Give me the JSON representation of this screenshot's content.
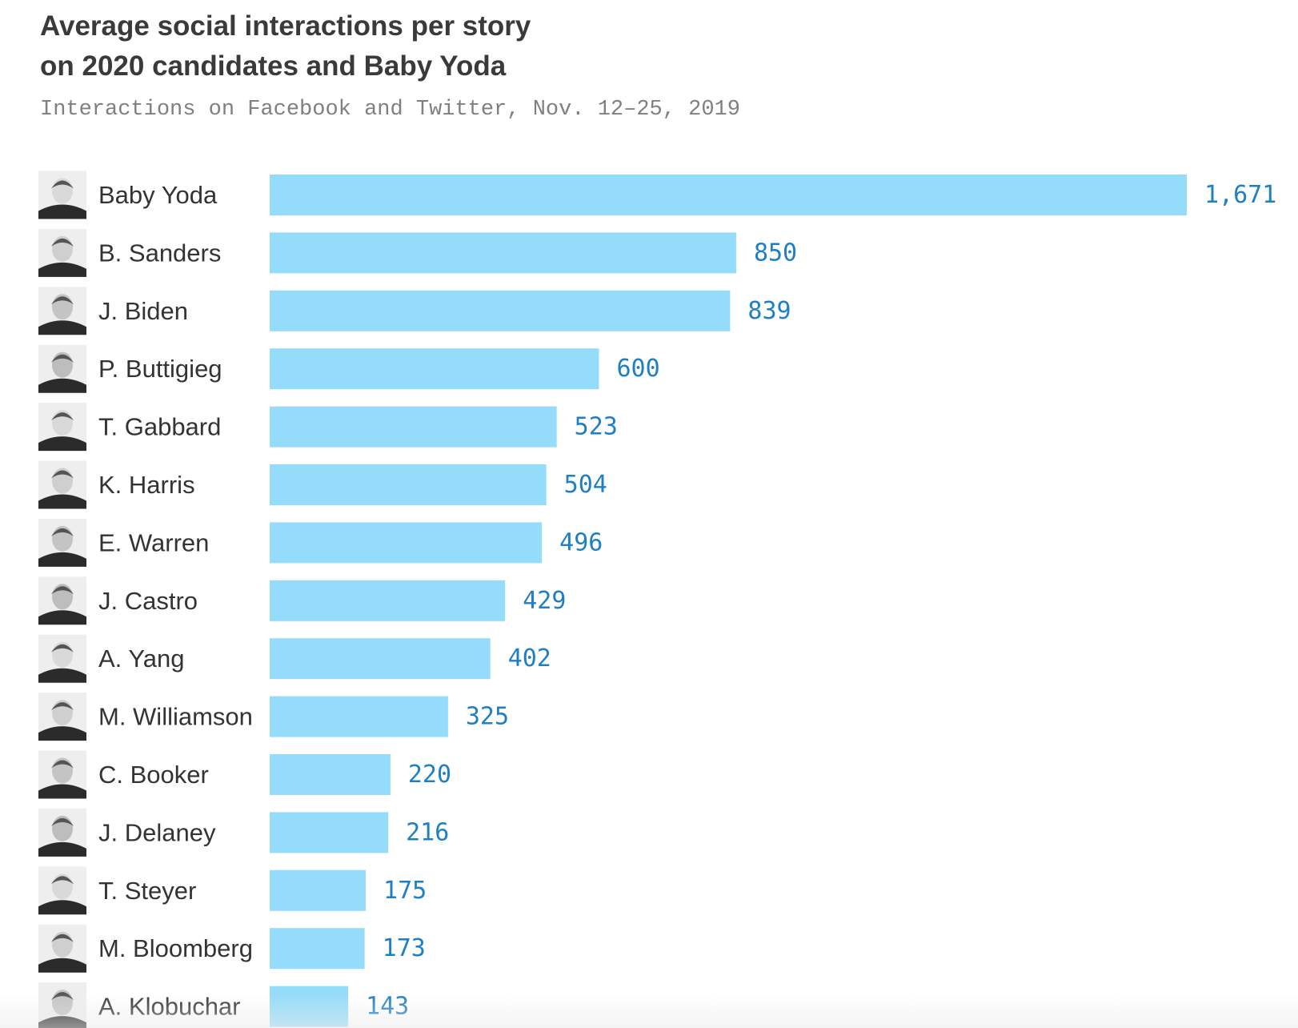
{
  "chart_data": {
    "type": "bar",
    "orientation": "horizontal",
    "title_lines": [
      "Average social interactions per story",
      "on 2020 candidates and Baby Yoda"
    ],
    "subtitle": "Interactions on Facebook and Twitter, Nov. 12–25, 2019",
    "categories": [
      "Baby Yoda",
      "B. Sanders",
      "J. Biden",
      "P. Buttigieg",
      "T. Gabbard",
      "K. Harris",
      "E. Warren",
      "J. Castro",
      "A. Yang",
      "M. Williamson",
      "C. Booker",
      "J. Delaney",
      "T. Steyer",
      "M. Bloomberg",
      "A. Klobuchar"
    ],
    "values": [
      1671,
      850,
      839,
      600,
      523,
      504,
      496,
      429,
      402,
      325,
      220,
      216,
      175,
      173,
      143
    ],
    "value_labels": [
      "1,671",
      "850",
      "839",
      "600",
      "523",
      "504",
      "496",
      "429",
      "402",
      "325",
      "220",
      "216",
      "175",
      "173",
      "143"
    ],
    "xlim": [
      0,
      1671
    ],
    "grid": false,
    "legend": "none",
    "colors": {
      "bar": "#94dcfa",
      "value_label": "#1e7fc3",
      "title": "#3a3a3a",
      "subtitle": "#7f7f7f",
      "category_label": "#333333"
    },
    "icons": "portrait-photo"
  }
}
